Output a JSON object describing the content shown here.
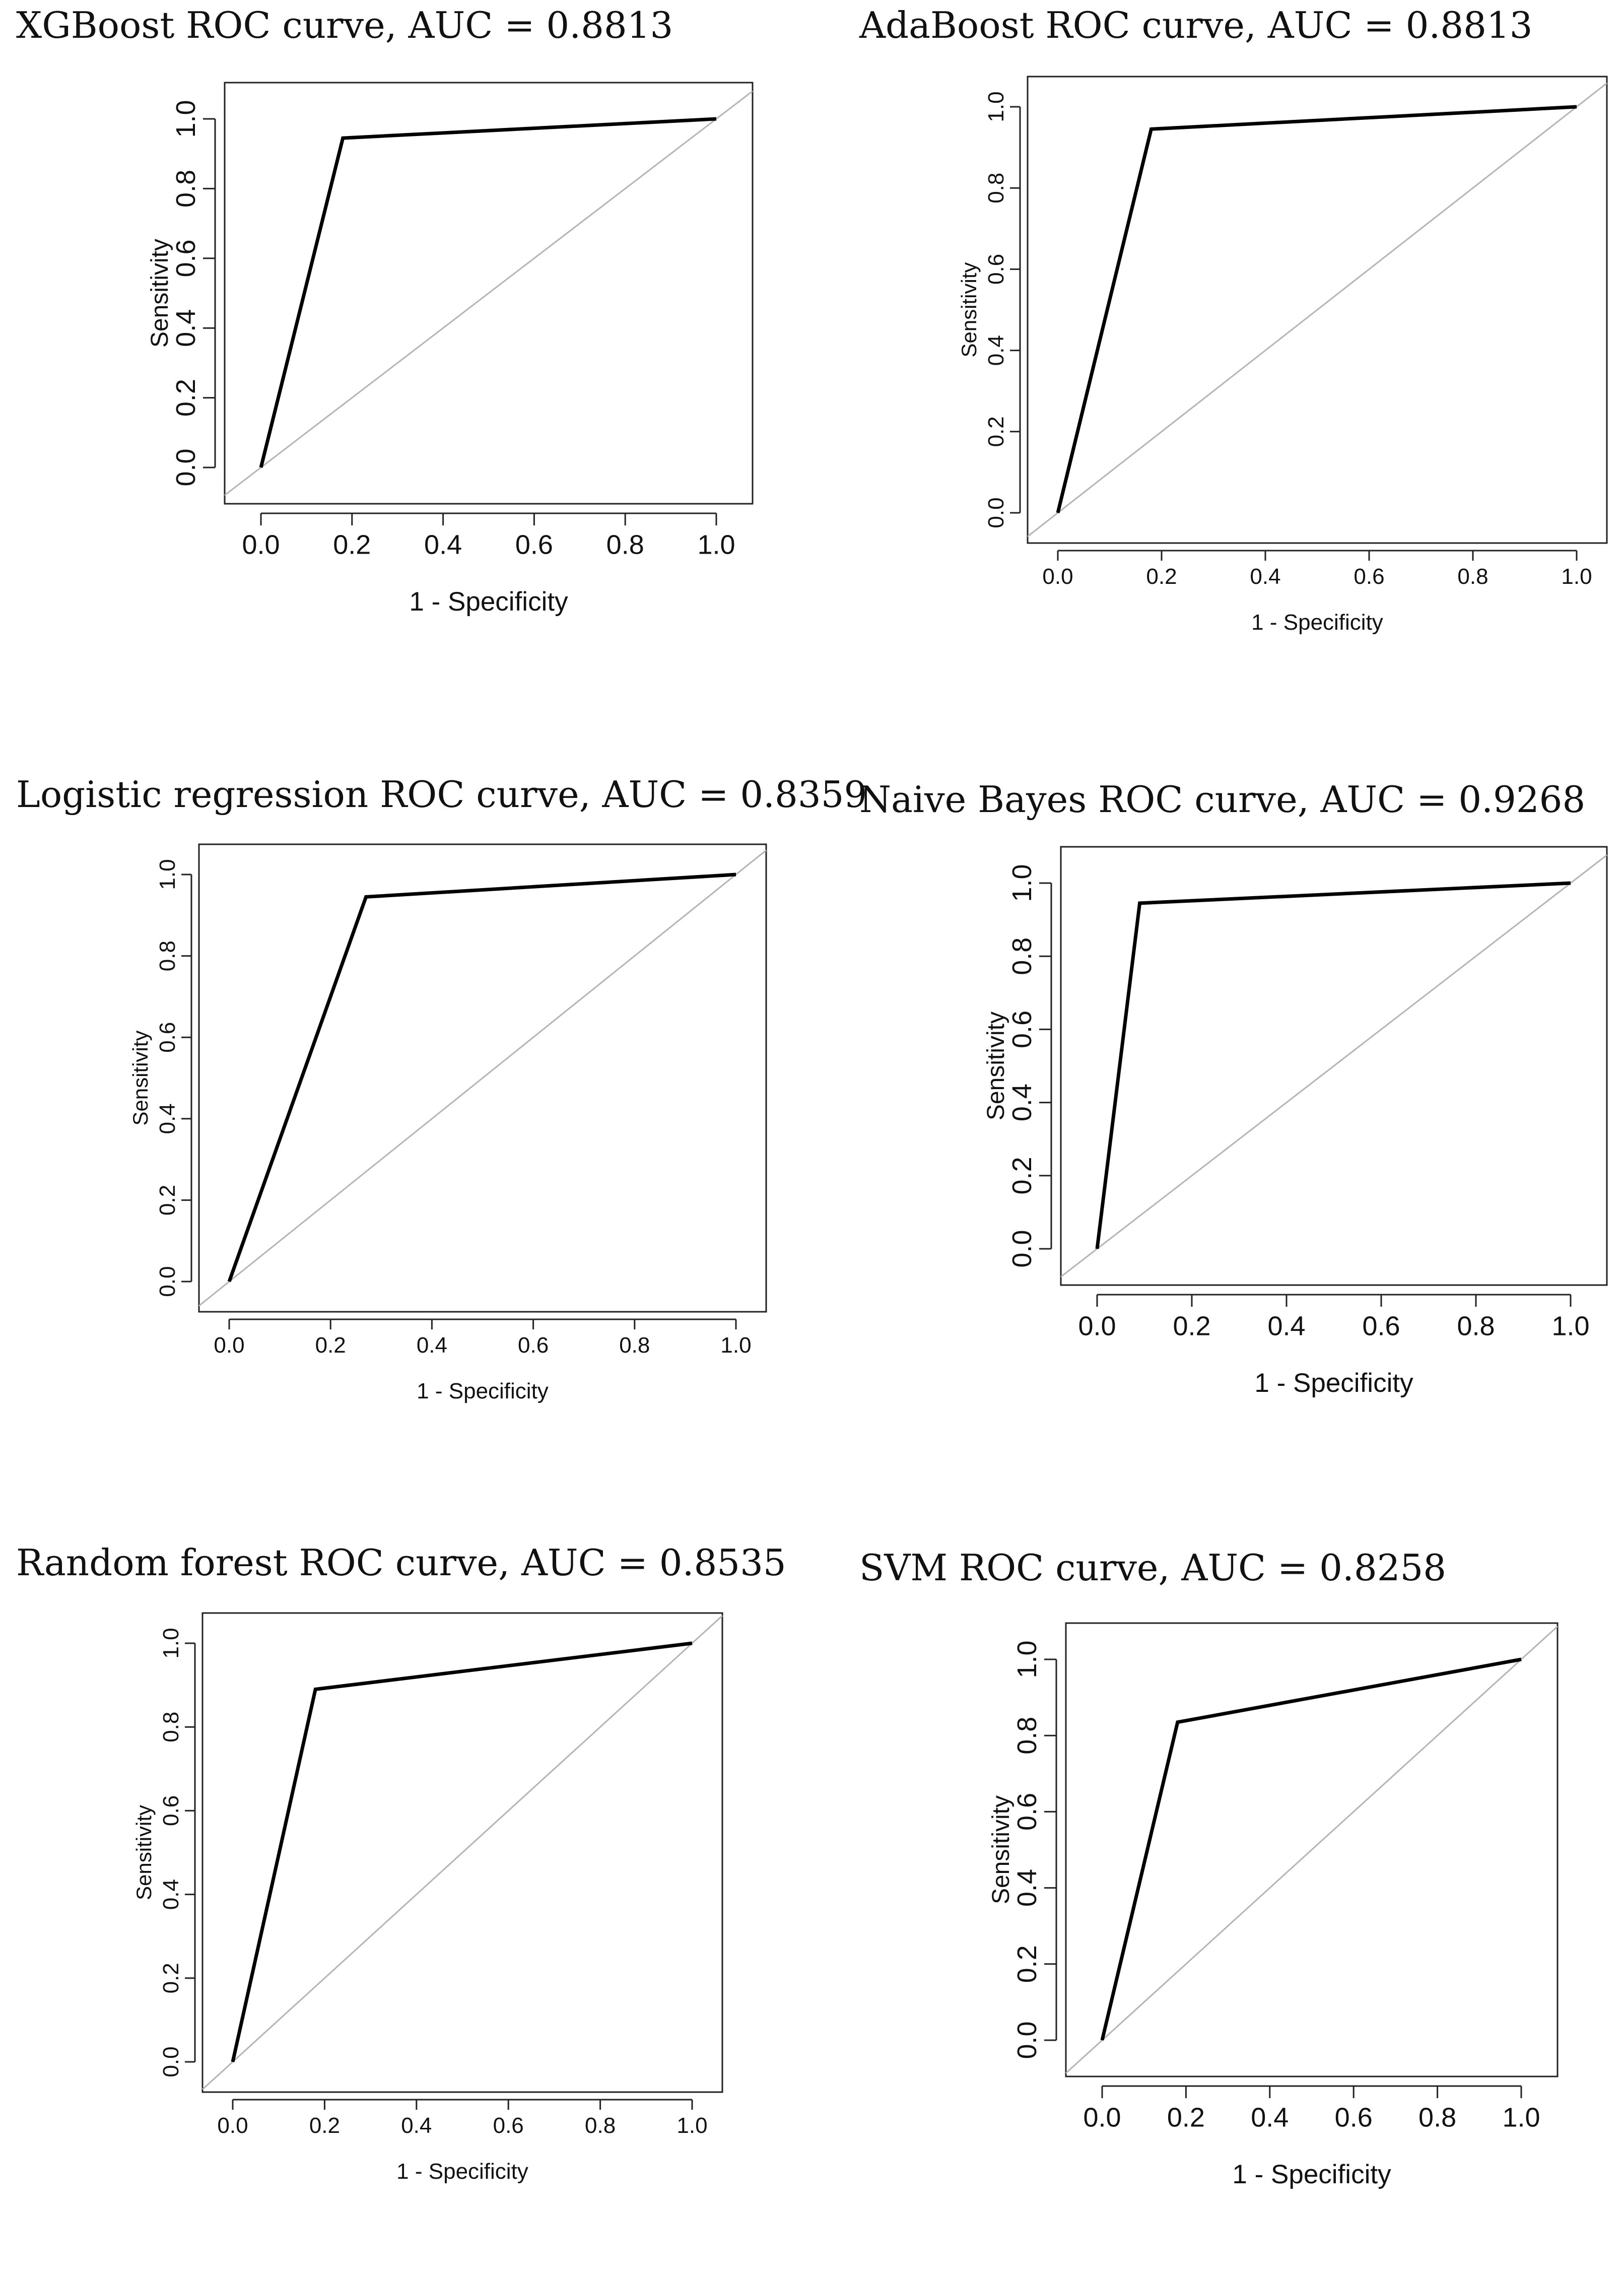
{
  "figure": {
    "background": "#ffffff",
    "curve_color": "#000000",
    "diagonal_color": "#b5b5b5"
  },
  "chart_data": [
    {
      "type": "line",
      "title": "XGBoost ROC curve, AUC = 0.8813",
      "xlabel": "1 - Specificity",
      "ylabel": "Sensitivity",
      "xlim": [
        0,
        1
      ],
      "ylim": [
        0,
        1
      ],
      "xticks": [
        "0.0",
        "0.2",
        "0.4",
        "0.6",
        "0.8",
        "1.0"
      ],
      "yticks": [
        "0.0",
        "0.2",
        "0.4",
        "0.6",
        "0.8",
        "1.0"
      ],
      "series": [
        {
          "name": "ROC curve",
          "x": [
            0,
            0.18,
            1
          ],
          "y": [
            0,
            0.945,
            1
          ]
        },
        {
          "name": "reference diagonal",
          "x": [
            0,
            1
          ],
          "y": [
            0,
            1
          ]
        }
      ]
    },
    {
      "type": "line",
      "title": "AdaBoost ROC curve, AUC = 0.8813",
      "xlabel": "1 - Specificity",
      "ylabel": "Sensitivity",
      "xlim": [
        0,
        1
      ],
      "ylim": [
        0,
        1
      ],
      "xticks": [
        "0.0",
        "0.2",
        "0.4",
        "0.6",
        "0.8",
        "1.0"
      ],
      "yticks": [
        "0.0",
        "0.2",
        "0.4",
        "0.6",
        "0.8",
        "1.0"
      ],
      "series": [
        {
          "name": "ROC curve",
          "x": [
            0,
            0.18,
            1
          ],
          "y": [
            0,
            0.945,
            1
          ]
        },
        {
          "name": "reference diagonal",
          "x": [
            0,
            1
          ],
          "y": [
            0,
            1
          ]
        }
      ]
    },
    {
      "type": "line",
      "title": "Logistic regression ROC curve, AUC = 0.8359",
      "xlabel": "1 - Specificity",
      "ylabel": "Sensitivity",
      "xlim": [
        0,
        1
      ],
      "ylim": [
        0,
        1
      ],
      "xticks": [
        "0.0",
        "0.2",
        "0.4",
        "0.6",
        "0.8",
        "1.0"
      ],
      "yticks": [
        "0.0",
        "0.2",
        "0.4",
        "0.6",
        "0.8",
        "1.0"
      ],
      "series": [
        {
          "name": "ROC curve",
          "x": [
            0,
            0.27,
            1
          ],
          "y": [
            0,
            0.945,
            1
          ]
        },
        {
          "name": "reference diagonal",
          "x": [
            0,
            1
          ],
          "y": [
            0,
            1
          ]
        }
      ]
    },
    {
      "type": "line",
      "title": "Naive Bayes ROC curve, AUC = 0.9268",
      "xlabel": "1 - Specificity",
      "ylabel": "Sensitivity",
      "xlim": [
        0,
        1
      ],
      "ylim": [
        0,
        1
      ],
      "xticks": [
        "0.0",
        "0.2",
        "0.4",
        "0.6",
        "0.8",
        "1.0"
      ],
      "yticks": [
        "0.0",
        "0.2",
        "0.4",
        "0.6",
        "0.8",
        "1.0"
      ],
      "series": [
        {
          "name": "ROC curve",
          "x": [
            0,
            0.09,
            1
          ],
          "y": [
            0,
            0.945,
            1
          ]
        },
        {
          "name": "reference diagonal",
          "x": [
            0,
            1
          ],
          "y": [
            0,
            1
          ]
        }
      ]
    },
    {
      "type": "line",
      "title": "Random forest ROC curve, AUC = 0.8535",
      "xlabel": "1 - Specificity",
      "ylabel": "Sensitivity",
      "xlim": [
        0,
        1
      ],
      "ylim": [
        0,
        1
      ],
      "xticks": [
        "0.0",
        "0.2",
        "0.4",
        "0.6",
        "0.8",
        "1.0"
      ],
      "yticks": [
        "0.0",
        "0.2",
        "0.4",
        "0.6",
        "0.8",
        "1.0"
      ],
      "series": [
        {
          "name": "ROC curve",
          "x": [
            0,
            0.18,
            1
          ],
          "y": [
            0,
            0.89,
            1
          ]
        },
        {
          "name": "reference diagonal",
          "x": [
            0,
            1
          ],
          "y": [
            0,
            1
          ]
        }
      ]
    },
    {
      "type": "line",
      "title": "SVM ROC curve, AUC = 0.8258",
      "xlabel": "1 - Specificity",
      "ylabel": "Sensitivity",
      "xlim": [
        0,
        1
      ],
      "ylim": [
        0,
        1
      ],
      "xticks": [
        "0.0",
        "0.2",
        "0.4",
        "0.6",
        "0.8",
        "1.0"
      ],
      "yticks": [
        "0.0",
        "0.2",
        "0.4",
        "0.6",
        "0.8",
        "1.0"
      ],
      "series": [
        {
          "name": "ROC curve",
          "x": [
            0,
            0.18,
            1
          ],
          "y": [
            0,
            0.835,
            1
          ]
        },
        {
          "name": "reference diagonal",
          "x": [
            0,
            1
          ],
          "y": [
            0,
            1
          ]
        }
      ]
    }
  ]
}
